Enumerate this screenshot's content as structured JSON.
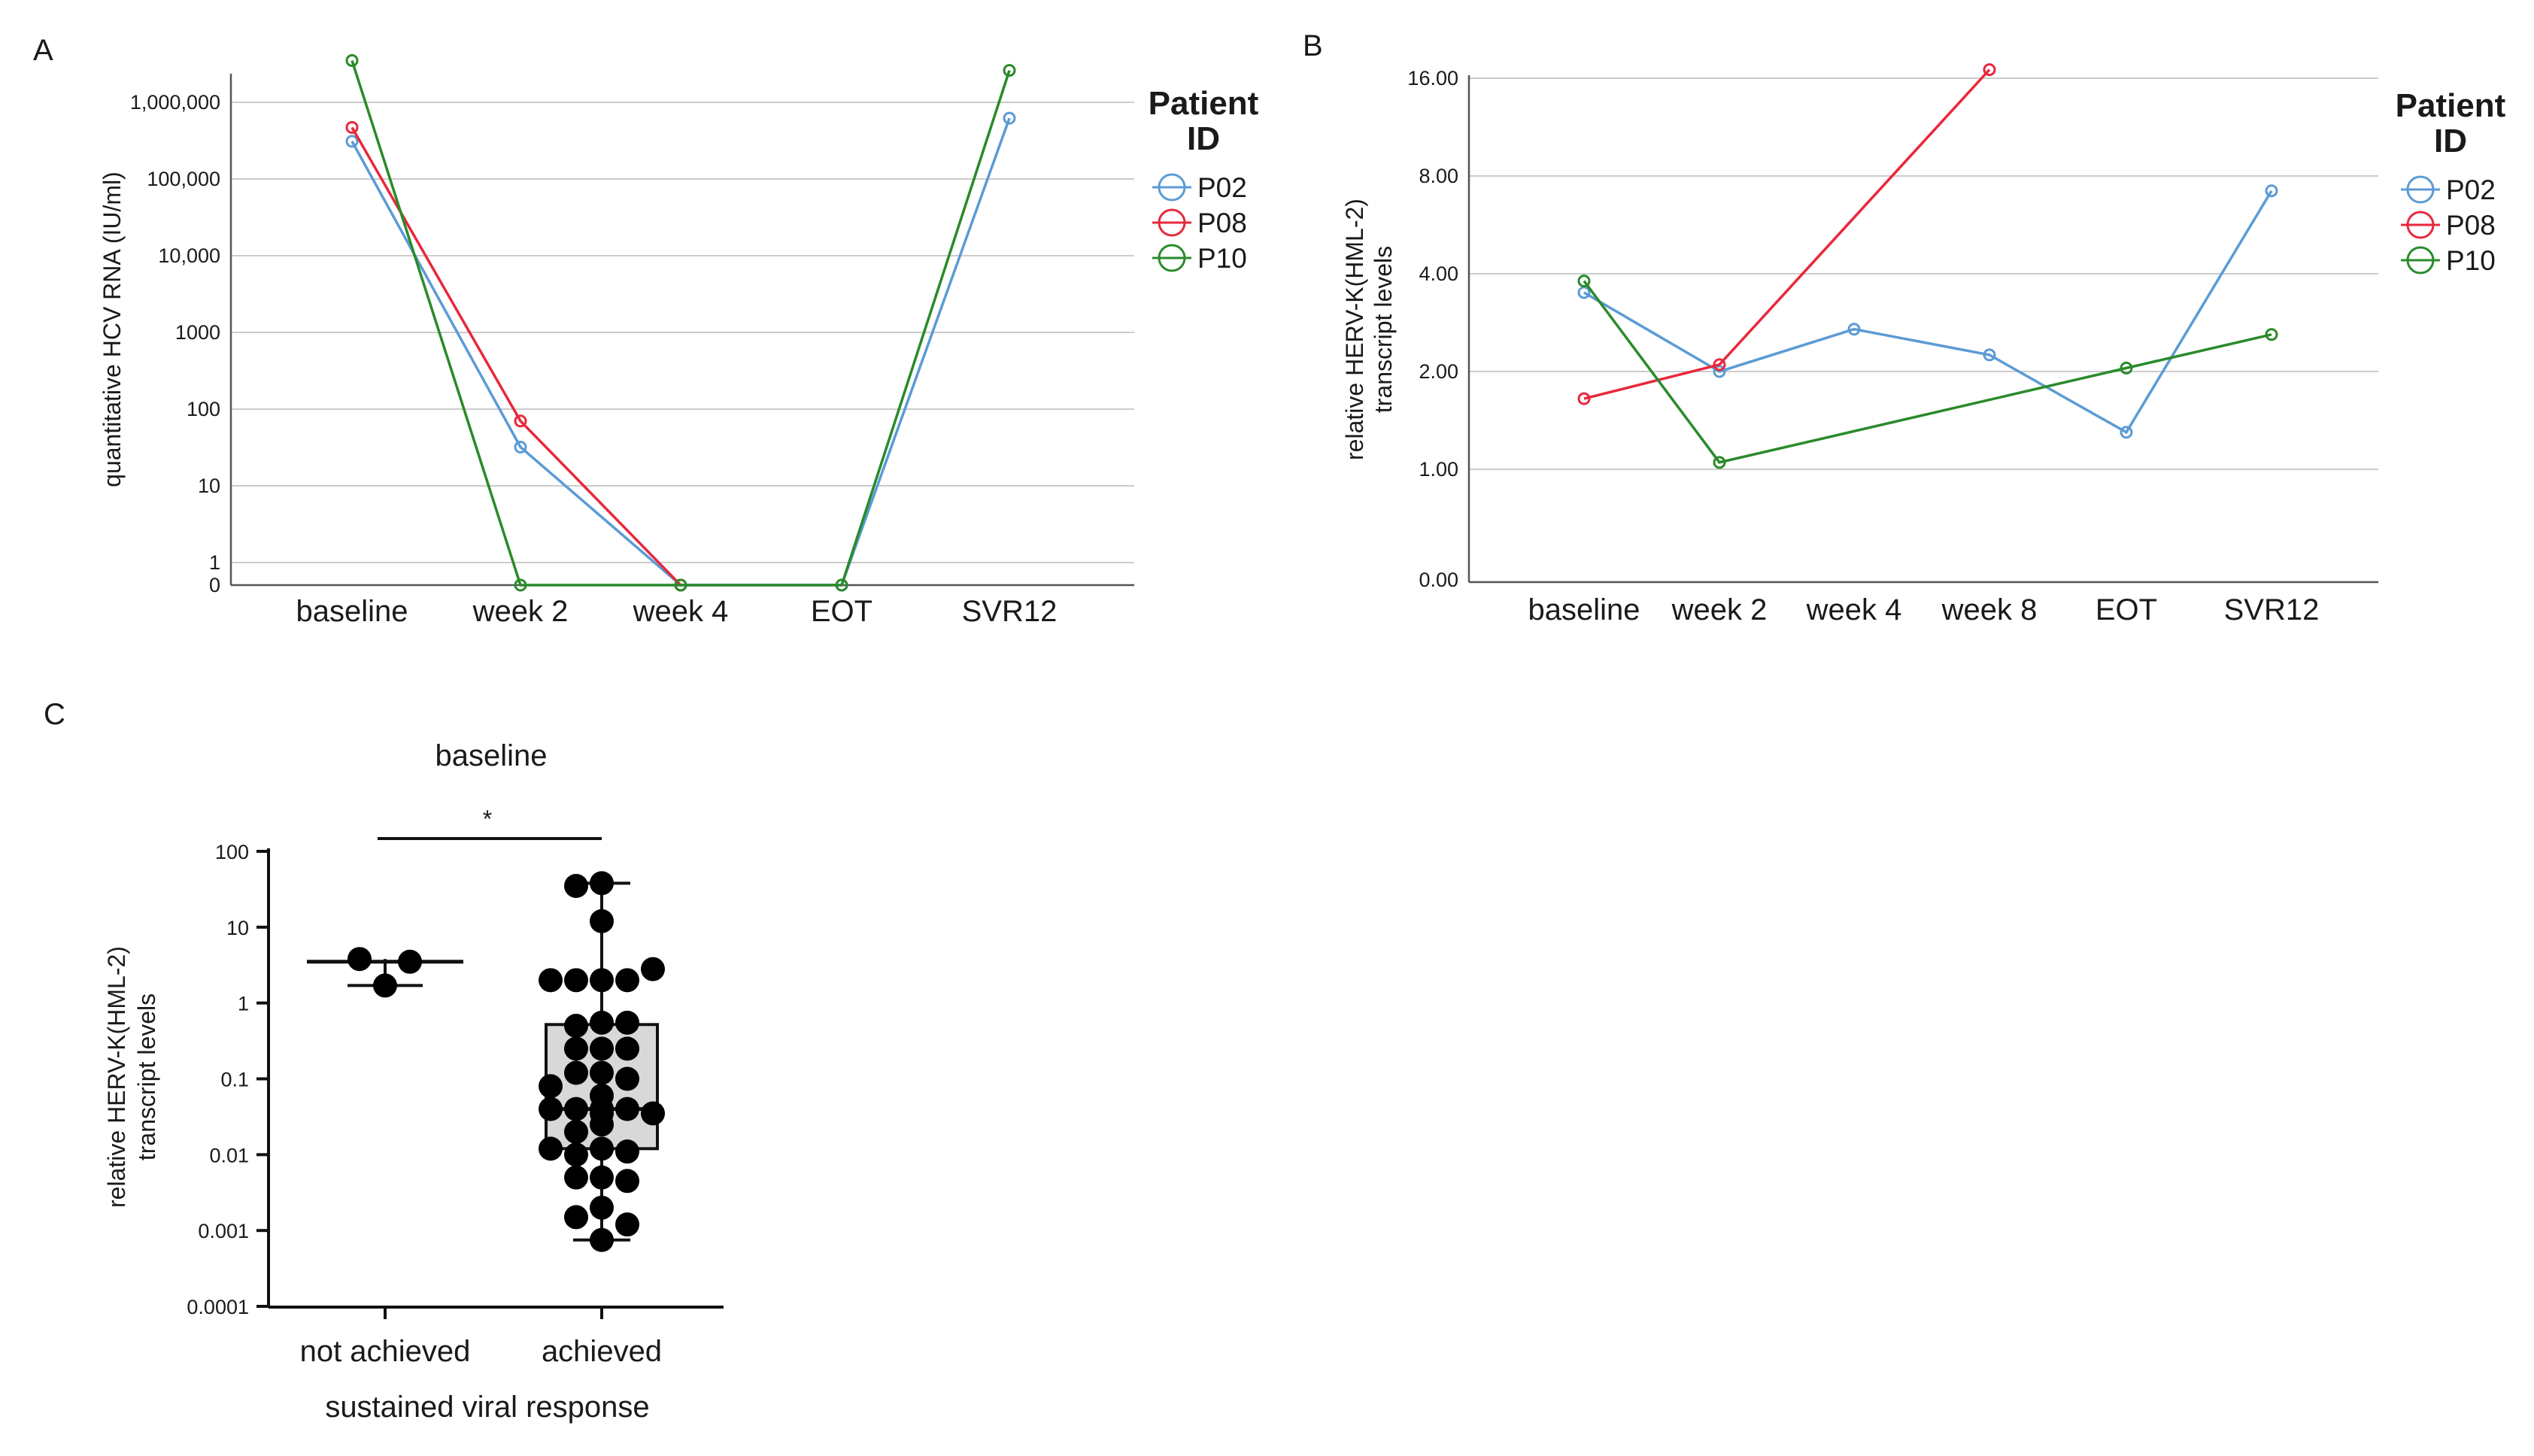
{
  "colors": {
    "P02": "#5b9bd5",
    "P08": "#e8283c",
    "P10": "#2a8a2a",
    "box_fill": "#d8d8d8",
    "grid": "#cccccc"
  },
  "chart_data": [
    {
      "panel": "A",
      "type": "line",
      "ylabel": "quantitative HCV RNA (IU/ml)",
      "y_scale": "log",
      "y_ticks": [
        {
          "label": "1,000,000",
          "value": 1000000
        },
        {
          "label": "100,000",
          "value": 100000
        },
        {
          "label": "10,000",
          "value": 10000
        },
        {
          "label": "1000",
          "value": 1000
        },
        {
          "label": "100",
          "value": 100
        },
        {
          "label": "10",
          "value": 10
        },
        {
          "label": "1",
          "value": 1
        },
        {
          "label": "0",
          "value": 0
        }
      ],
      "categories": [
        "baseline",
        "week 2",
        "week 4",
        "EOT",
        "SVR12"
      ],
      "legend_title_line1": "Patient",
      "legend_title_line2": "ID",
      "series": [
        {
          "name": "P02",
          "values": [
            310000,
            32,
            0,
            0,
            620000
          ]
        },
        {
          "name": "P08",
          "values": [
            470000,
            70,
            0,
            null,
            null
          ]
        },
        {
          "name": "P10",
          "values": [
            3500000,
            0,
            0,
            0,
            2600000
          ]
        }
      ]
    },
    {
      "panel": "B",
      "type": "line",
      "ylabel_line1": "relative HERV-K(HML-2)",
      "ylabel_line2": "transcript levels",
      "y_ticks": [
        {
          "label": "16.00",
          "value": 16
        },
        {
          "label": "8.00",
          "value": 8
        },
        {
          "label": "4.00",
          "value": 4
        },
        {
          "label": "2.00",
          "value": 2
        },
        {
          "label": "1.00",
          "value": 1
        },
        {
          "label": "0.00",
          "value": 0
        }
      ],
      "categories": [
        "baseline",
        "week 2",
        "week 4",
        "week 8",
        "EOT",
        "SVR12"
      ],
      "legend_title_line1": "Patient",
      "legend_title_line2": "ID",
      "series": [
        {
          "name": "P02",
          "values": [
            3.5,
            2.0,
            2.7,
            2.25,
            1.3,
            7.2
          ]
        },
        {
          "name": "P08",
          "values": [
            1.65,
            2.1,
            null,
            17.0,
            null,
            null
          ]
        },
        {
          "name": "P10",
          "values": [
            3.8,
            1.05,
            null,
            null,
            2.05,
            2.6
          ]
        }
      ]
    },
    {
      "panel": "C",
      "type": "box-scatter",
      "title": "baseline",
      "xlabel": "sustained viral response",
      "ylabel_line1": "relative HERV-K(HML-2)",
      "ylabel_line2": "transcript levels",
      "y_scale": "log",
      "ylim": [
        0.0001,
        100
      ],
      "y_ticks": [
        {
          "label": "100",
          "value": 100
        },
        {
          "label": "10",
          "value": 10
        },
        {
          "label": "1",
          "value": 1
        },
        {
          "label": "0.1",
          "value": 0.1
        },
        {
          "label": "0.01",
          "value": 0.01
        },
        {
          "label": "0.001",
          "value": 0.001
        },
        {
          "label": "0.0001",
          "value": 0.0001
        }
      ],
      "significance": "*",
      "groups": [
        {
          "name": "not achieved",
          "box": false,
          "median": 3.5,
          "min": 1.7,
          "max": 3.8,
          "points": [
            3.8,
            3.5,
            1.7
          ]
        },
        {
          "name": "achieved",
          "box": true,
          "q1": 0.012,
          "median": 0.04,
          "q3": 0.52,
          "min": 0.00075,
          "max": 38,
          "points": [
            38,
            35,
            12,
            2,
            2,
            2,
            2,
            2.8,
            0.55,
            0.5,
            0.55,
            0.25,
            0.25,
            0.25,
            0.12,
            0.12,
            0.1,
            0.08,
            0.06,
            0.04,
            0.04,
            0.04,
            0.035,
            0.035,
            0.04,
            0.025,
            0.02,
            0.012,
            0.011,
            0.012,
            0.01,
            0.005,
            0.005,
            0.0045,
            0.002,
            0.0015,
            0.0012,
            0.00075
          ]
        }
      ]
    }
  ]
}
